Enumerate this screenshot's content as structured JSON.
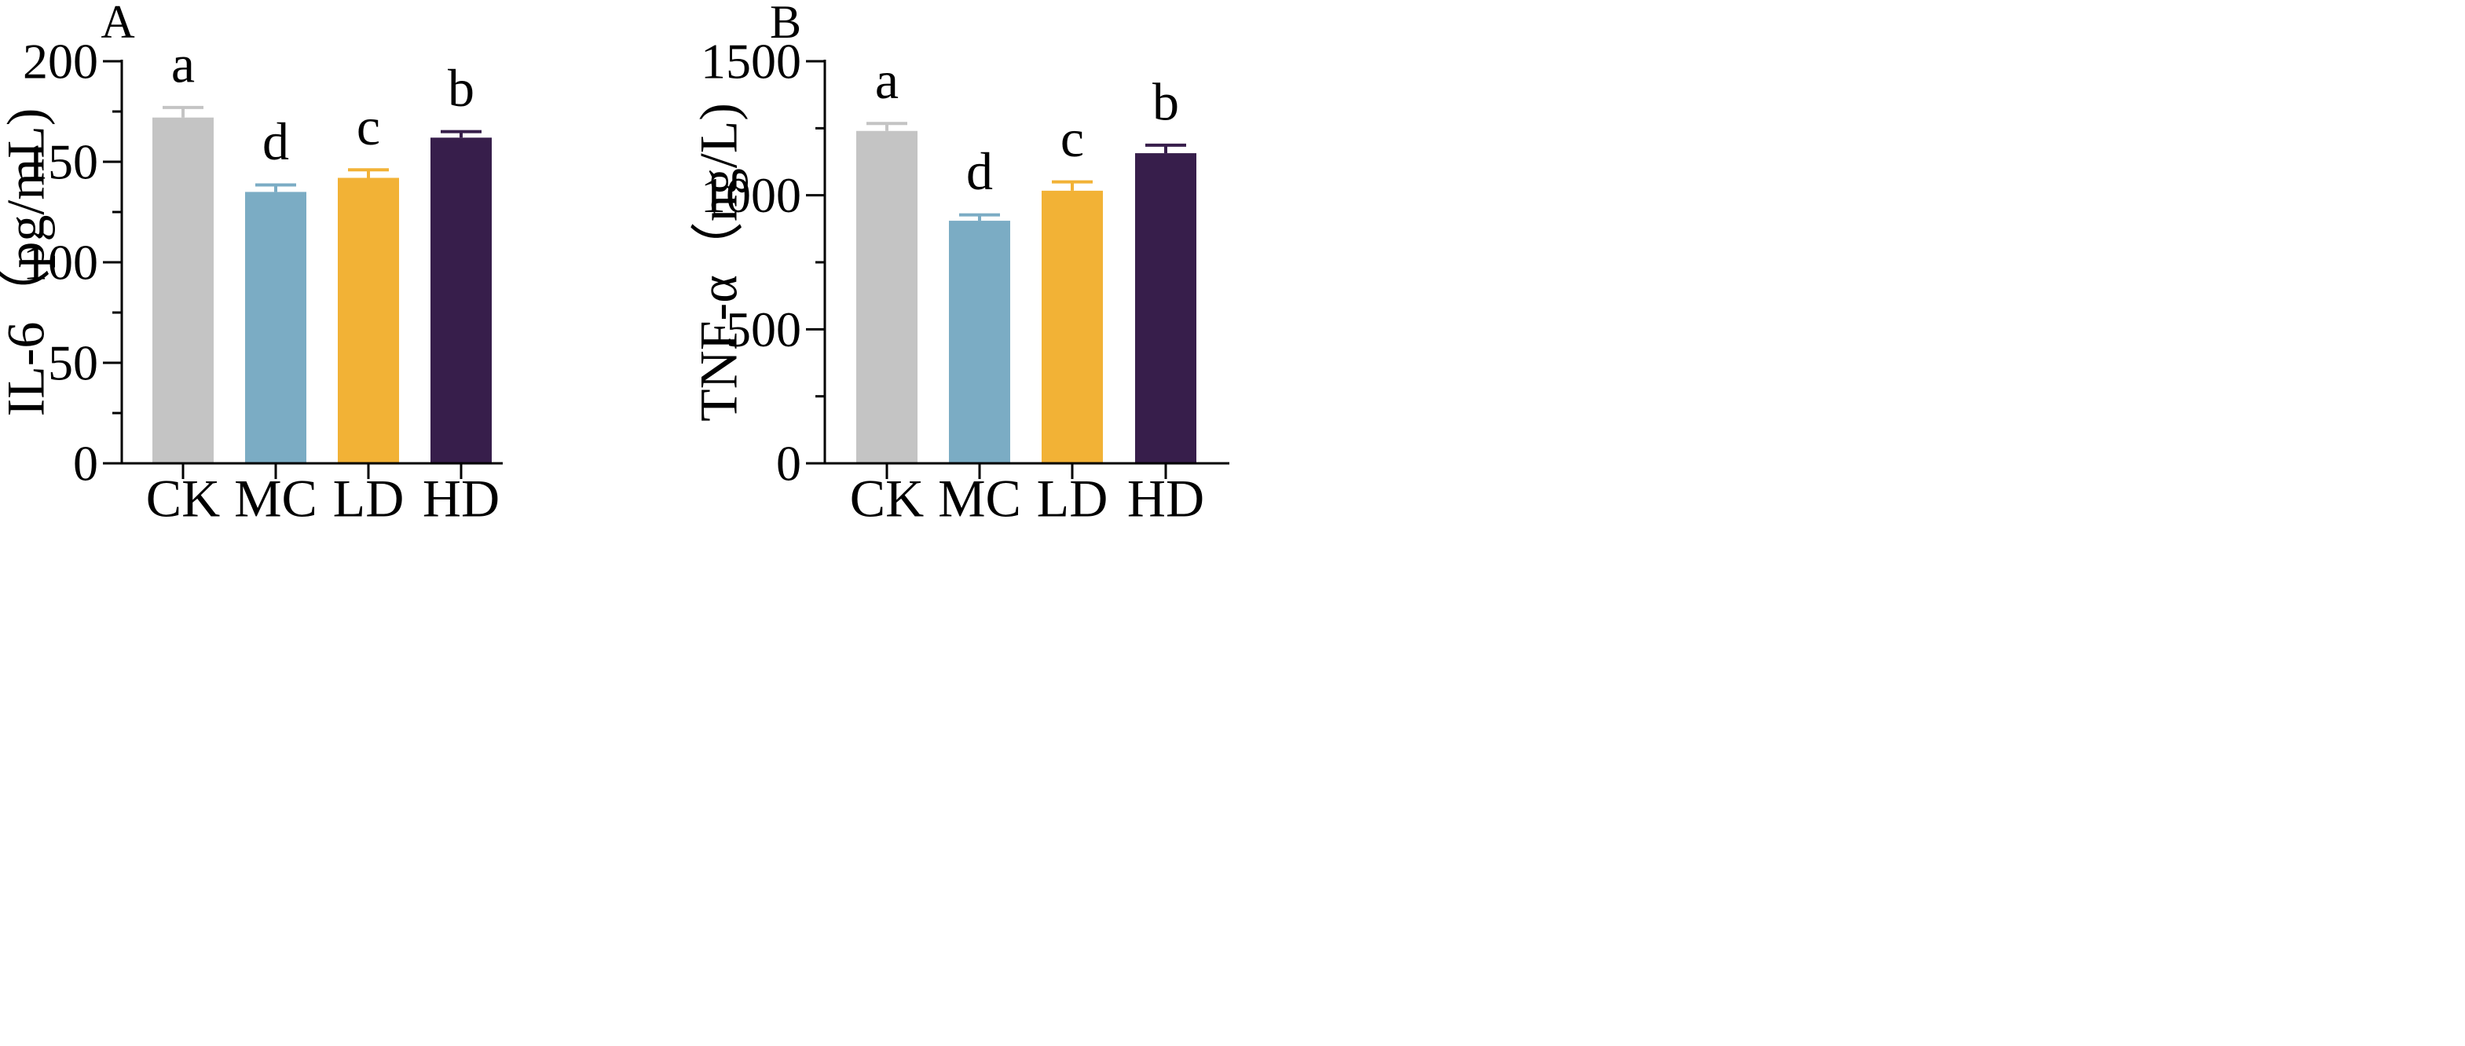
{
  "chart_data": [
    {
      "panel": "A",
      "type": "bar",
      "categories": [
        "CK",
        "MC",
        "LD",
        "HD"
      ],
      "values": [
        172,
        135,
        142,
        162
      ],
      "errors": [
        5,
        3.5,
        4,
        3
      ],
      "significance": [
        "a",
        "d",
        "c",
        "b"
      ],
      "colors": [
        "#c4c4c4",
        "#7bacc4",
        "#f2b236",
        "#371e4b"
      ],
      "ylabel": "IL-6（pg/mL)",
      "xlabel": "",
      "ylim": [
        0,
        200
      ],
      "yticks": [
        "0",
        "50",
        "100",
        "150",
        "200"
      ],
      "tick_values": [
        0,
        50,
        100,
        150,
        200
      ],
      "minor_step": 25
    },
    {
      "panel": "B",
      "type": "bar",
      "categories": [
        "CK",
        "MC",
        "LD",
        "HD"
      ],
      "values": [
        1240,
        905,
        1017,
        1157
      ],
      "errors": [
        28,
        22,
        33,
        30
      ],
      "significance": [
        "a",
        "d",
        "c",
        "b"
      ],
      "colors": [
        "#c4c4c4",
        "#7bacc4",
        "#f2b236",
        "#371e4b"
      ],
      "ylabel": "TNF-α（ng/L)",
      "xlabel": "",
      "ylim": [
        0,
        1500
      ],
      "yticks": [
        "0",
        "500",
        "1000",
        "1500"
      ],
      "tick_values": [
        0,
        500,
        1000,
        1500
      ],
      "minor_step": 250
    }
  ]
}
